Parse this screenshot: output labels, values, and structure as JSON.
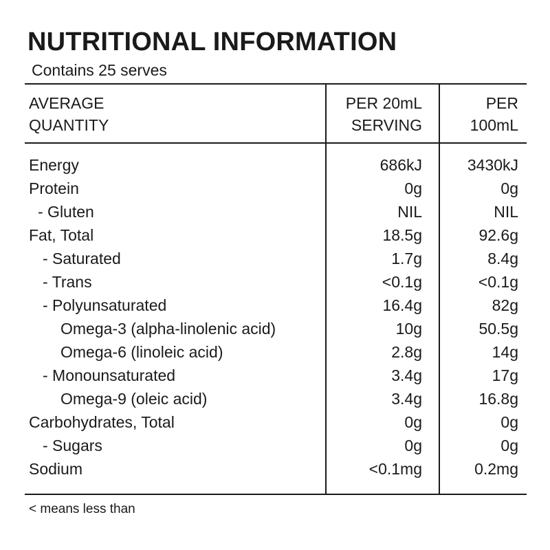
{
  "title": "NUTRITIONAL INFORMATION",
  "subtitle": "Contains 25 serves",
  "headers": {
    "col1_line1": "AVERAGE",
    "col1_line2": "QUANTITY",
    "col2_line1": "PER 20mL",
    "col2_line2": "SERVING",
    "col3_line1": "PER",
    "col3_line2": "100mL"
  },
  "rows": [
    {
      "label": "Energy",
      "per_serving": "686kJ",
      "per_100ml": "3430kJ"
    },
    {
      "label": "Protein",
      "per_serving": "0g",
      "per_100ml": "0g"
    },
    {
      "label": "- Gluten",
      "per_serving": "NIL",
      "per_100ml": "NIL"
    },
    {
      "label": "Fat, Total",
      "per_serving": "18.5g",
      "per_100ml": "92.6g"
    },
    {
      "label": "- Saturated",
      "per_serving": "1.7g",
      "per_100ml": "8.4g"
    },
    {
      "label": "- Trans",
      "per_serving": "<0.1g",
      "per_100ml": "<0.1g"
    },
    {
      "label": "- Polyunsaturated",
      "per_serving": "16.4g",
      "per_100ml": "82g"
    },
    {
      "label": "Omega-3 (alpha-linolenic acid)",
      "per_serving": "10g",
      "per_100ml": "50.5g"
    },
    {
      "label": "Omega-6 (linoleic acid)",
      "per_serving": "2.8g",
      "per_100ml": "14g"
    },
    {
      "label": "- Monounsaturated",
      "per_serving": "3.4g",
      "per_100ml": "17g"
    },
    {
      "label": "Omega-9 (oleic acid)",
      "per_serving": "3.4g",
      "per_100ml": "16.8g"
    },
    {
      "label": "Carbohydrates, Total",
      "per_serving": "0g",
      "per_100ml": "0g"
    },
    {
      "label": "- Sugars",
      "per_serving": "0g",
      "per_100ml": "0g"
    },
    {
      "label": "Sodium",
      "per_serving": "<0.1mg",
      "per_100ml": "0.2mg"
    }
  ],
  "footnote": "< means less than"
}
